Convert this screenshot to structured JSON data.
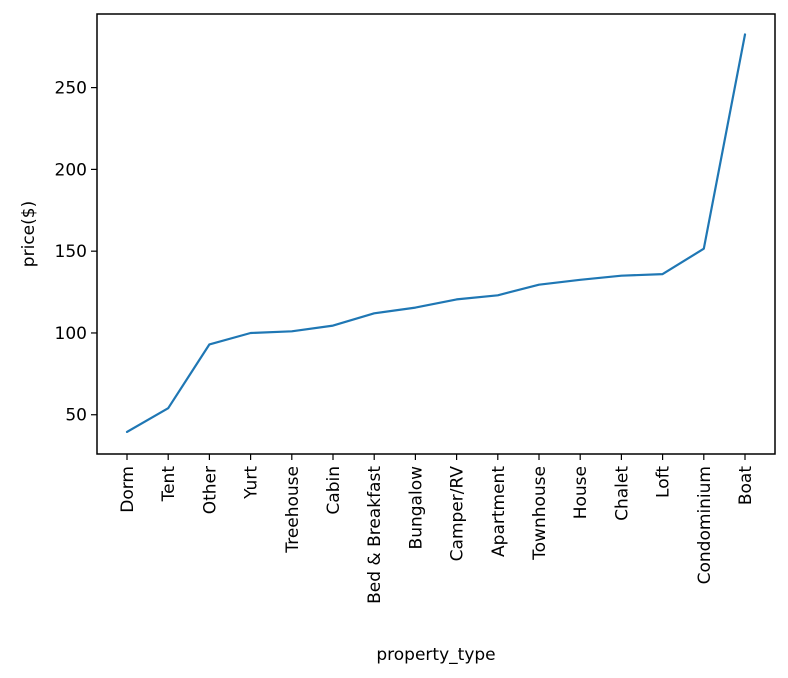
{
  "chart_data": {
    "type": "line",
    "title": "",
    "xlabel": "property_type",
    "ylabel": "price($)",
    "categories": [
      "Dorm",
      "Tent",
      "Other",
      "Yurt",
      "Treehouse",
      "Cabin",
      "Bed & Breakfast",
      "Bungalow",
      "Camper/RV",
      "Apartment",
      "Townhouse",
      "House",
      "Chalet",
      "Loft",
      "Condominium",
      "Boat"
    ],
    "values": [
      39.5,
      54,
      93,
      100,
      101,
      104.5,
      112,
      115.5,
      120.5,
      123,
      129.5,
      132.5,
      135,
      136,
      151.5,
      282.5
    ],
    "yticks": [
      50,
      100,
      150,
      200,
      250
    ],
    "ylim": [
      26,
      295
    ],
    "line_color": "#1f77b4",
    "grid": false,
    "legend": "none"
  }
}
